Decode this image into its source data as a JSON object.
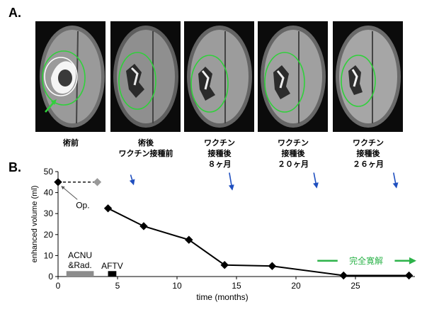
{
  "figure": {
    "panel_a_label": "A.",
    "panel_b_label": "B."
  },
  "scans": [
    {
      "caption": "術前",
      "stage": "pre-op"
    },
    {
      "caption": "術後\nワクチン接種前",
      "stage": "post-op"
    },
    {
      "caption": "ワクチン\n接種後\n８ヶ月",
      "stage": "8m"
    },
    {
      "caption": "ワクチン\n接種後\n２０ヶ月",
      "stage": "20m"
    },
    {
      "caption": "ワクチン\n接種後\n２６ヶ月",
      "stage": "26m"
    }
  ],
  "colors": {
    "roi_outline": "#2fd13a",
    "arrow_blue": "#1f4fbf",
    "remission_green": "#2db34a",
    "bar_gray": "#8c8c8c",
    "bar_black": "#000000",
    "line": "#000000",
    "dashed_line": "#000000",
    "preop_marker": "#999999"
  },
  "chart_data": {
    "type": "line",
    "xlabel": "time (months)",
    "ylabel": "enhanced volume (ml)",
    "xlim": [
      0,
      30
    ],
    "ylim": [
      0,
      50
    ],
    "xticks": [
      0,
      5,
      10,
      15,
      20,
      25
    ],
    "yticks": [
      0,
      10,
      20,
      30,
      40,
      50
    ],
    "series": [
      {
        "style": "dashed",
        "marker": "diamond",
        "points": [
          {
            "x": 0,
            "y": 45
          },
          {
            "x": 3.3,
            "y": 45
          }
        ]
      },
      {
        "style": "solid",
        "marker": "diamond",
        "points": [
          {
            "x": 4.2,
            "y": 32.5
          },
          {
            "x": 7.2,
            "y": 24
          },
          {
            "x": 11,
            "y": 17.5
          },
          {
            "x": 14,
            "y": 5.5
          },
          {
            "x": 18,
            "y": 5
          },
          {
            "x": 24,
            "y": 0.5
          },
          {
            "x": 29.5,
            "y": 0.5
          }
        ]
      }
    ],
    "annotations": {
      "op_label": "Op.",
      "op_point": {
        "x": 0,
        "y": 45
      },
      "op_text_at": {
        "x": 1.5,
        "y": 34
      },
      "acnu_label": "ACNU\n&Rad.",
      "acnu_bar": {
        "x_start": 0.7,
        "x_end": 3,
        "height": 2.6
      },
      "aftv_label": "AFTV",
      "aftv_bar": {
        "x_start": 4.2,
        "x_end": 4.9,
        "height": 2.6
      },
      "remission_label": "完全寛解",
      "remission_arrow": {
        "x_start": 21.8,
        "x_end": 30,
        "y": 7.5
      },
      "blue_arrows": [
        {
          "x": 6.1,
          "y_start": 48.5,
          "y_end": 44
        },
        {
          "x": 14.4,
          "y_start": 49.5,
          "y_end": 41.5
        },
        {
          "x": 21.5,
          "y_start": 49.5,
          "y_end": 42.5
        },
        {
          "x": 28.2,
          "y_start": 49.5,
          "y_end": 42.5
        }
      ]
    }
  }
}
